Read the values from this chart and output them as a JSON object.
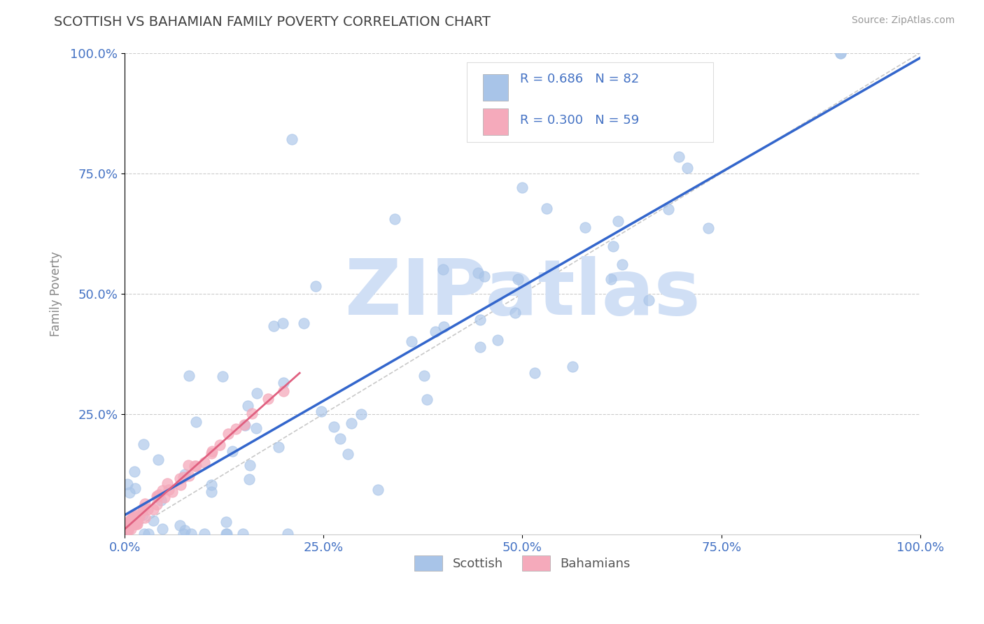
{
  "title": "SCOTTISH VS BAHAMIAN FAMILY POVERTY CORRELATION CHART",
  "source": "Source: ZipAtlas.com",
  "ylabel": "Family Poverty",
  "watermark": "ZIPatlas",
  "legend_label_scottish": "Scottish",
  "legend_label_bahamian": "Bahamians",
  "scottish_R": 0.686,
  "scottish_N": 82,
  "bahamian_R": 0.3,
  "bahamian_N": 59,
  "scottish_color": "#a8c4e8",
  "bahamian_color": "#f5aabb",
  "scottish_line_color": "#3366cc",
  "bahamian_line_color": "#e06080",
  "diag_color": "#bbbbbb",
  "xlim": [
    0.0,
    1.0
  ],
  "ylim": [
    0.0,
    1.0
  ],
  "x_ticks": [
    0.0,
    0.25,
    0.5,
    0.75,
    1.0
  ],
  "x_ticklabels": [
    "0.0%",
    "25.0%",
    "50.0%",
    "75.0%",
    "100.0%"
  ],
  "y_ticks": [
    0.25,
    0.5,
    0.75,
    1.0
  ],
  "y_ticklabels": [
    "25.0%",
    "50.0%",
    "75.0%",
    "100.0%"
  ],
  "grid_color": "#cccccc",
  "background_color": "#ffffff",
  "title_color": "#404040",
  "axis_color": "#4472c4",
  "watermark_color": "#d0dff5",
  "scottish_seed": 12345,
  "bahamian_seed": 67890
}
